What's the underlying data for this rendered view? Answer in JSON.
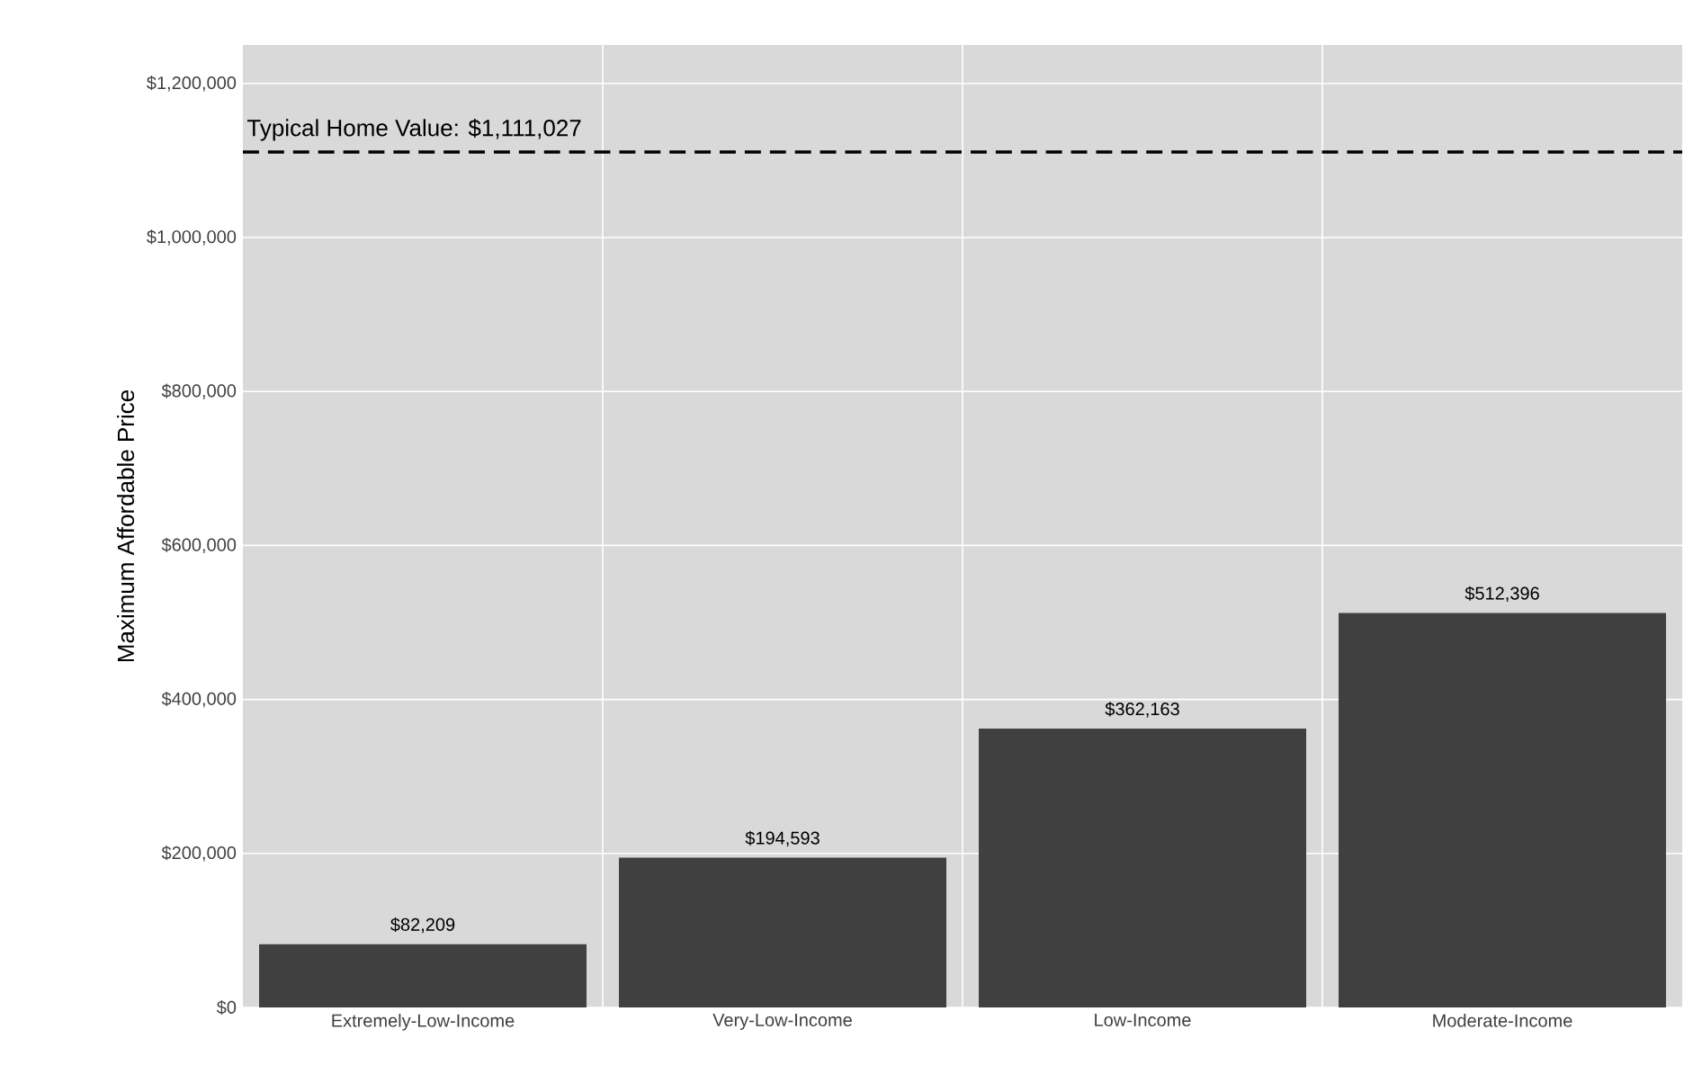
{
  "chart_data": {
    "type": "bar",
    "ylabel": "Maximum Affordable Price",
    "categories": [
      "Extremely-Low-Income",
      "Very-Low-Income",
      "Low-Income",
      "Moderate-Income"
    ],
    "values": [
      82209,
      194593,
      362163,
      512396
    ],
    "value_labels": [
      "$82,209",
      "$194,593",
      "$362,163",
      "$512,396"
    ],
    "color": "#404040",
    "ylim": [
      0,
      1250000
    ],
    "yticks": [
      {
        "value": 0,
        "label": "$0"
      },
      {
        "value": 200000,
        "label": "$200,000"
      },
      {
        "value": 400000,
        "label": "$400,000"
      },
      {
        "value": 600000,
        "label": "$600,000"
      },
      {
        "value": 800000,
        "label": "$800,000"
      },
      {
        "value": 1000000,
        "label": "$1,000,000"
      },
      {
        "value": 1200000,
        "label": "$1,200,000"
      }
    ],
    "grid": "y",
    "ref_lines": [
      {
        "axis": "y",
        "value": 1111027,
        "label": "Typical Home Value: $1,111,027",
        "color": "#000000",
        "line_style": "dashed"
      }
    ]
  }
}
